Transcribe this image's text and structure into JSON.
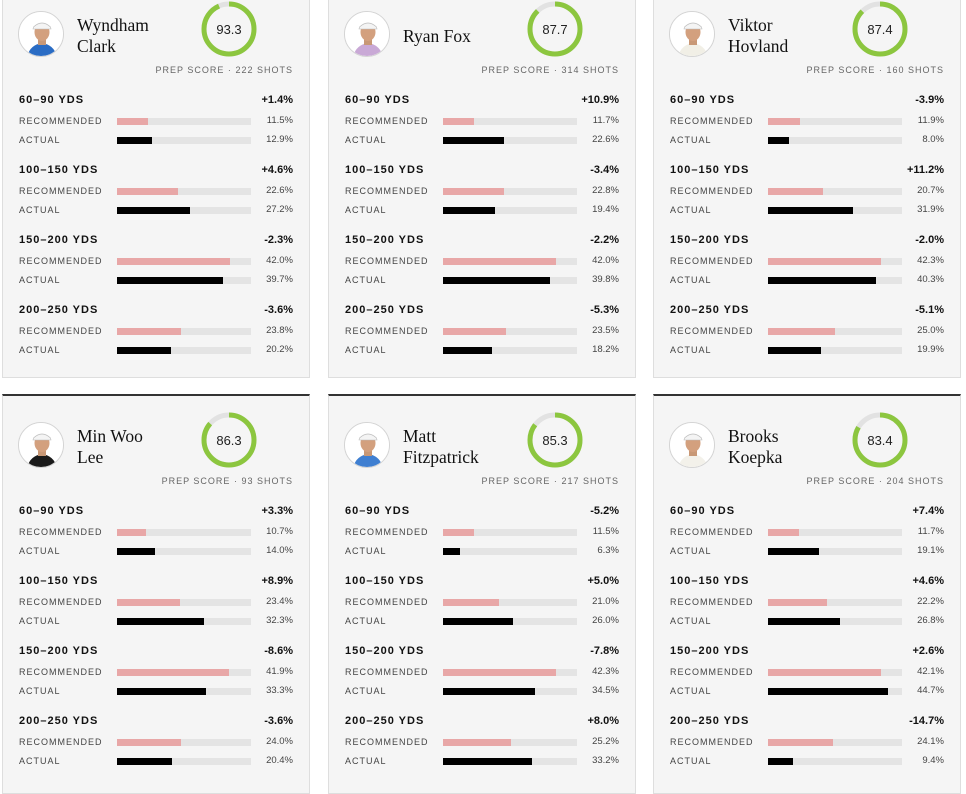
{
  "labels": {
    "prep_score": "PREP SCORE",
    "shots_suffix": "SHOTS",
    "separator": "·",
    "recommended": "RECOMMENDED",
    "actual": "ACTUAL"
  },
  "colors": {
    "gauge_green": "#8cc63f",
    "gauge_track": "#e2e2e2",
    "recommended_bar": "#e8a7a7",
    "actual_bar": "#000000"
  },
  "players": [
    {
      "name_line1": "Wyndham",
      "name_line2": "Clark",
      "score": "93.3",
      "shots": "222",
      "shirt": "#2a6cc4",
      "icon": "player-photo",
      "bands": [
        {
          "range": "60–90 YDS",
          "diff": "+1.4%",
          "recommended": "11.5%",
          "actual": "12.9%"
        },
        {
          "range": "100–150 YDS",
          "diff": "+4.6%",
          "recommended": "22.6%",
          "actual": "27.2%"
        },
        {
          "range": "150–200 YDS",
          "diff": "-2.3%",
          "recommended": "42.0%",
          "actual": "39.7%"
        },
        {
          "range": "200–250 YDS",
          "diff": "-3.6%",
          "recommended": "23.8%",
          "actual": "20.2%"
        }
      ]
    },
    {
      "name_line1": "Ryan Fox",
      "name_line2": "",
      "score": "87.7",
      "shots": "314",
      "shirt": "#c9a9d6",
      "icon": "player-photo",
      "bands": [
        {
          "range": "60–90 YDS",
          "diff": "+10.9%",
          "recommended": "11.7%",
          "actual": "22.6%"
        },
        {
          "range": "100–150 YDS",
          "diff": "-3.4%",
          "recommended": "22.8%",
          "actual": "19.4%"
        },
        {
          "range": "150–200 YDS",
          "diff": "-2.2%",
          "recommended": "42.0%",
          "actual": "39.8%"
        },
        {
          "range": "200–250 YDS",
          "diff": "-5.3%",
          "recommended": "23.5%",
          "actual": "18.2%"
        }
      ]
    },
    {
      "name_line1": "Viktor",
      "name_line2": "Hovland",
      "score": "87.4",
      "shots": "160",
      "shirt": "#f1efe6",
      "icon": "player-photo",
      "bands": [
        {
          "range": "60–90 YDS",
          "diff": "-3.9%",
          "recommended": "11.9%",
          "actual": "8.0%"
        },
        {
          "range": "100–150 YDS",
          "diff": "+11.2%",
          "recommended": "20.7%",
          "actual": "31.9%"
        },
        {
          "range": "150–200 YDS",
          "diff": "-2.0%",
          "recommended": "42.3%",
          "actual": "40.3%"
        },
        {
          "range": "200–250 YDS",
          "diff": "-5.1%",
          "recommended": "25.0%",
          "actual": "19.9%"
        }
      ]
    },
    {
      "name_line1": "Min Woo",
      "name_line2": "Lee",
      "score": "86.3",
      "shots": "93",
      "shirt": "#1a1a1a",
      "icon": "player-photo",
      "bands": [
        {
          "range": "60–90 YDS",
          "diff": "+3.3%",
          "recommended": "10.7%",
          "actual": "14.0%"
        },
        {
          "range": "100–150 YDS",
          "diff": "+8.9%",
          "recommended": "23.4%",
          "actual": "32.3%"
        },
        {
          "range": "150–200 YDS",
          "diff": "-8.6%",
          "recommended": "41.9%",
          "actual": "33.3%"
        },
        {
          "range": "200–250 YDS",
          "diff": "-3.6%",
          "recommended": "24.0%",
          "actual": "20.4%"
        }
      ]
    },
    {
      "name_line1": "Matt",
      "name_line2": "Fitzpatrick",
      "score": "85.3",
      "shots": "217",
      "shirt": "#3f7fd1",
      "icon": "player-photo",
      "bands": [
        {
          "range": "60–90 YDS",
          "diff": "-5.2%",
          "recommended": "11.5%",
          "actual": "6.3%"
        },
        {
          "range": "100–150 YDS",
          "diff": "+5.0%",
          "recommended": "21.0%",
          "actual": "26.0%"
        },
        {
          "range": "150–200 YDS",
          "diff": "-7.8%",
          "recommended": "42.3%",
          "actual": "34.5%"
        },
        {
          "range": "200–250 YDS",
          "diff": "+8.0%",
          "recommended": "25.2%",
          "actual": "33.2%"
        }
      ]
    },
    {
      "name_line1": "Brooks",
      "name_line2": "Koepka",
      "score": "83.4",
      "shots": "204",
      "shirt": "#f3f1ea",
      "icon": "player-photo",
      "bands": [
        {
          "range": "60–90 YDS",
          "diff": "+7.4%",
          "recommended": "11.7%",
          "actual": "19.1%"
        },
        {
          "range": "100–150 YDS",
          "diff": "+4.6%",
          "recommended": "22.2%",
          "actual": "26.8%"
        },
        {
          "range": "150–200 YDS",
          "diff": "+2.6%",
          "recommended": "42.1%",
          "actual": "44.7%"
        },
        {
          "range": "200–250 YDS",
          "diff": "-14.7%",
          "recommended": "24.1%",
          "actual": "9.4%"
        }
      ]
    }
  ]
}
